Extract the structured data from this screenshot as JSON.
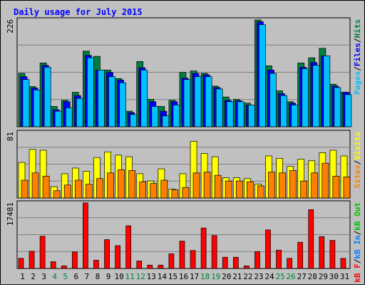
{
  "title": "Daily usage for July 2015",
  "colors": {
    "pages": "#00c0ff",
    "files": "#0000ff",
    "hits": "#008040",
    "visits": "#ffff00",
    "sites": "#ff8000",
    "kb_in": "#0080ff",
    "kb_out": "#00c000",
    "kb_f": "#ff0000",
    "title": "#0000ff",
    "weekend": "#008040",
    "plot_bg": "#c0c0c0"
  },
  "chart_data": [
    {
      "type": "bar",
      "name": "hits-files-pages",
      "ymax_label": "226",
      "ylim": [
        0,
        226
      ],
      "legend": [
        {
          "text": "Pages",
          "color": "#00c0ff"
        },
        {
          "text": "/",
          "color": "#000000"
        },
        {
          "text": "Files",
          "color": "#0000ff"
        },
        {
          "text": "/",
          "color": "#000000"
        },
        {
          "text": "Hits",
          "color": "#008040"
        }
      ],
      "series": [
        {
          "name": "Hits",
          "color": "#008040",
          "values": [
            113,
            85,
            135,
            43,
            56,
            73,
            160,
            149,
            120,
            102,
            33,
            138,
            58,
            43,
            56,
            115,
            118,
            113,
            86,
            63,
            58,
            50,
            226,
            129,
            76,
            53,
            135,
            146,
            166,
            90,
            73
          ]
        },
        {
          "name": "Files",
          "color": "#0000ff",
          "values": [
            106,
            82,
            130,
            36,
            53,
            66,
            151,
            120,
            115,
            99,
            30,
            125,
            53,
            33,
            53,
            103,
            113,
            110,
            83,
            56,
            55,
            46,
            222,
            120,
            70,
            50,
            126,
            136,
            150,
            86,
            73
          ]
        },
        {
          "name": "Pages",
          "color": "#00c0ff",
          "values": [
            100,
            78,
            126,
            33,
            40,
            60,
            146,
            120,
            106,
            93,
            26,
            120,
            43,
            23,
            46,
            100,
            106,
            106,
            80,
            53,
            53,
            46,
            216,
            113,
            66,
            46,
            123,
            130,
            150,
            83,
            68
          ]
        }
      ]
    },
    {
      "type": "bar",
      "name": "visits-sites",
      "ymax_label": "81",
      "ylim": [
        0,
        81
      ],
      "legend": [
        {
          "text": "Sites",
          "color": "#ff8000"
        },
        {
          "text": "/",
          "color": "#000000"
        },
        {
          "text": "Visits",
          "color": "#ffff00"
        }
      ],
      "series": [
        {
          "name": "Visits",
          "color": "#ffff00",
          "values": [
            44,
            60,
            59,
            14,
            30,
            37,
            33,
            50,
            57,
            53,
            51,
            30,
            21,
            36,
            11,
            30,
            70,
            55,
            51,
            25,
            25,
            24,
            17,
            52,
            49,
            39,
            48,
            46,
            56,
            59,
            52
          ]
        },
        {
          "name": "Sites",
          "color": "#ff8000",
          "values": [
            22,
            31,
            27,
            9,
            16,
            22,
            17,
            24,
            31,
            35,
            34,
            20,
            18,
            22,
            10,
            13,
            31,
            32,
            28,
            21,
            21,
            20,
            15,
            32,
            31,
            34,
            21,
            31,
            43,
            27,
            26
          ]
        }
      ]
    },
    {
      "type": "bar",
      "name": "kbytes",
      "ymax_label": "17481",
      "ylim": [
        0,
        17481
      ],
      "legend": [
        {
          "text": "kB F",
          "color": "#ff0000"
        },
        {
          "text": "/",
          "color": "#000000"
        },
        {
          "text": "kB In",
          "color": "#0080ff"
        },
        {
          "text": "/",
          "color": "#000000"
        },
        {
          "text": "kB Out",
          "color": "#00c000"
        }
      ],
      "series": [
        {
          "name": "kB F",
          "color": "#ff0000",
          "values": [
            2700,
            4600,
            8600,
            1800,
            700,
            4400,
            17481,
            2200,
            7700,
            6100,
            11400,
            2000,
            900,
            900,
            3900,
            7300,
            4800,
            10800,
            8800,
            3000,
            3000,
            700,
            4500,
            10300,
            4900,
            2700,
            7000,
            15700,
            8500,
            7500,
            2700
          ]
        }
      ]
    }
  ],
  "days": [
    {
      "label": "1",
      "weekend": false
    },
    {
      "label": "2",
      "weekend": false
    },
    {
      "label": "3",
      "weekend": false
    },
    {
      "label": "4",
      "weekend": true
    },
    {
      "label": "5",
      "weekend": true
    },
    {
      "label": "6",
      "weekend": false
    },
    {
      "label": "7",
      "weekend": false
    },
    {
      "label": "8",
      "weekend": false
    },
    {
      "label": "9",
      "weekend": false
    },
    {
      "label": "10",
      "weekend": false
    },
    {
      "label": "11",
      "weekend": true
    },
    {
      "label": "12",
      "weekend": true
    },
    {
      "label": "13",
      "weekend": false
    },
    {
      "label": "14",
      "weekend": false
    },
    {
      "label": "15",
      "weekend": false
    },
    {
      "label": "16",
      "weekend": false
    },
    {
      "label": "17",
      "weekend": false
    },
    {
      "label": "18",
      "weekend": true
    },
    {
      "label": "19",
      "weekend": true
    },
    {
      "label": "20",
      "weekend": false
    },
    {
      "label": "21",
      "weekend": false
    },
    {
      "label": "22",
      "weekend": false
    },
    {
      "label": "23",
      "weekend": false
    },
    {
      "label": "24",
      "weekend": false
    },
    {
      "label": "25",
      "weekend": true
    },
    {
      "label": "26",
      "weekend": true
    },
    {
      "label": "27",
      "weekend": false
    },
    {
      "label": "28",
      "weekend": false
    },
    {
      "label": "29",
      "weekend": false
    },
    {
      "label": "30",
      "weekend": false
    },
    {
      "label": "31",
      "weekend": false
    }
  ]
}
